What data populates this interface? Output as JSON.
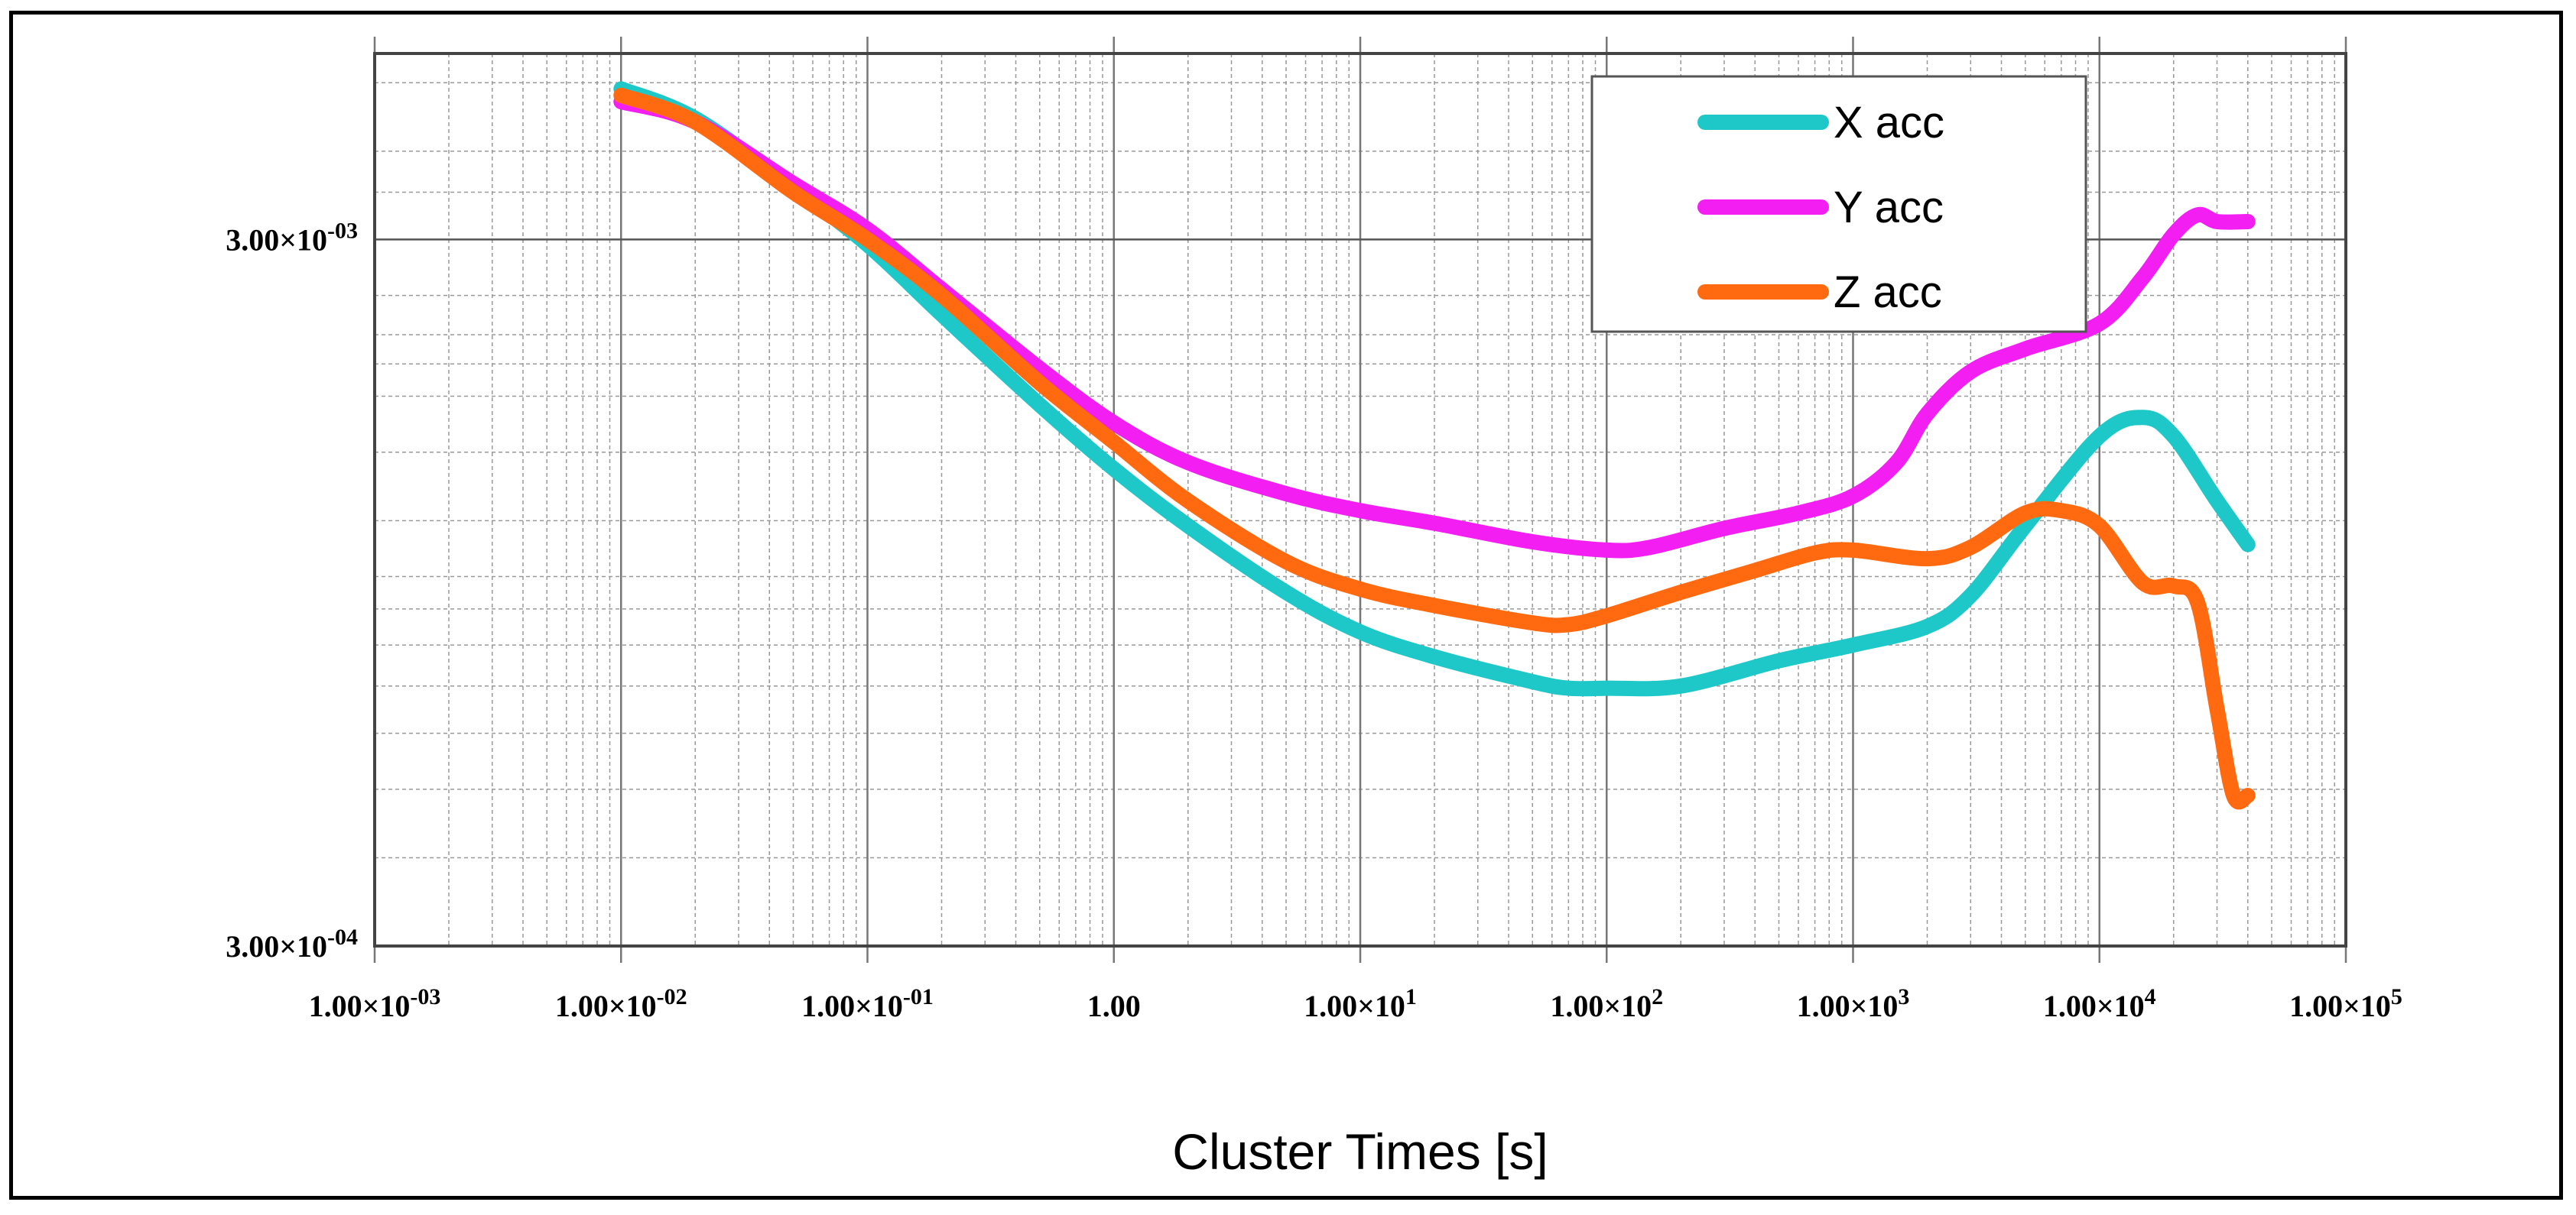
{
  "chart_data": {
    "type": "line",
    "title": "",
    "xlabel": "Cluster Times [s]",
    "ylabel": "",
    "xscale": "log",
    "yscale": "log",
    "xlim": [
      0.001,
      100000
    ],
    "ylim": [
      0.0003,
      0.0055
    ],
    "grid": true,
    "legend_position": "top-right",
    "x_ticks": [
      {
        "value": 0.001,
        "mantissa": "1.00×10",
        "exp": "-03"
      },
      {
        "value": 0.01,
        "mantissa": "1.00×10",
        "exp": "-02"
      },
      {
        "value": 0.1,
        "mantissa": "1.00×10",
        "exp": "-01"
      },
      {
        "value": 1,
        "mantissa": "1.00",
        "exp": ""
      },
      {
        "value": 10,
        "mantissa": "1.00×10",
        "exp": "1"
      },
      {
        "value": 100,
        "mantissa": "1.00×10",
        "exp": "2"
      },
      {
        "value": 1000,
        "mantissa": "1.00×10",
        "exp": "3"
      },
      {
        "value": 10000,
        "mantissa": "1.00×10",
        "exp": "4"
      },
      {
        "value": 100000,
        "mantissa": "1.00×10",
        "exp": "5"
      }
    ],
    "y_ticks": [
      {
        "value": 0.003,
        "mantissa": "3.00×10",
        "exp": "-03"
      },
      {
        "value": 0.0003,
        "mantissa": "3.00×10",
        "exp": "-04"
      }
    ],
    "series": [
      {
        "name": "X acc",
        "color": "#1ec8c8",
        "x": [
          0.01,
          0.02,
          0.05,
          0.1,
          0.2,
          0.5,
          1,
          2,
          5,
          10,
          20,
          50,
          70,
          100,
          200,
          500,
          1000,
          2000,
          3000,
          5000,
          10000,
          15000,
          20000,
          30000,
          40000
        ],
        "y": [
          0.0049,
          0.00445,
          0.00355,
          0.00295,
          0.00235,
          0.00175,
          0.00142,
          0.00118,
          0.00095,
          0.000835,
          0.00077,
          0.00071,
          0.000695,
          0.000695,
          0.0007,
          0.00076,
          0.0008,
          0.00085,
          0.00094,
          0.00118,
          0.00158,
          0.00168,
          0.00158,
          0.00128,
          0.00111
        ]
      },
      {
        "name": "Y acc",
        "color": "#f21ef2",
        "x": [
          0.01,
          0.02,
          0.05,
          0.1,
          0.2,
          0.5,
          1,
          2,
          5,
          10,
          20,
          50,
          100,
          150,
          300,
          600,
          1000,
          1500,
          2000,
          3000,
          5000,
          10000,
          15000,
          20000,
          25000,
          30000,
          40000
        ],
        "y": [
          0.0047,
          0.0044,
          0.0036,
          0.0031,
          0.00255,
          0.00197,
          0.00165,
          0.00145,
          0.00131,
          0.00124,
          0.00119,
          0.00112,
          0.00109,
          0.0011,
          0.00117,
          0.00123,
          0.0013,
          0.00145,
          0.0017,
          0.00195,
          0.0021,
          0.00228,
          0.00265,
          0.00305,
          0.00325,
          0.00318,
          0.00318
        ]
      },
      {
        "name": "Z acc",
        "color": "#ff6a10",
        "x": [
          0.01,
          0.02,
          0.05,
          0.1,
          0.2,
          0.5,
          1,
          2,
          5,
          10,
          20,
          50,
          70,
          100,
          200,
          400,
          700,
          1000,
          2000,
          3000,
          5000,
          7000,
          10000,
          15000,
          20000,
          25000,
          30000,
          35000,
          40000
        ],
        "y": [
          0.0048,
          0.0044,
          0.0035,
          0.003,
          0.0025,
          0.00188,
          0.00155,
          0.00128,
          0.00105,
          0.00096,
          0.00091,
          0.00086,
          0.000855,
          0.00088,
          0.00095,
          0.00102,
          0.00108,
          0.00109,
          0.00106,
          0.0011,
          0.00123,
          0.00124,
          0.00118,
          0.00098,
          0.00097,
          0.00092,
          0.00065,
          0.00049,
          0.00049
        ]
      }
    ]
  }
}
